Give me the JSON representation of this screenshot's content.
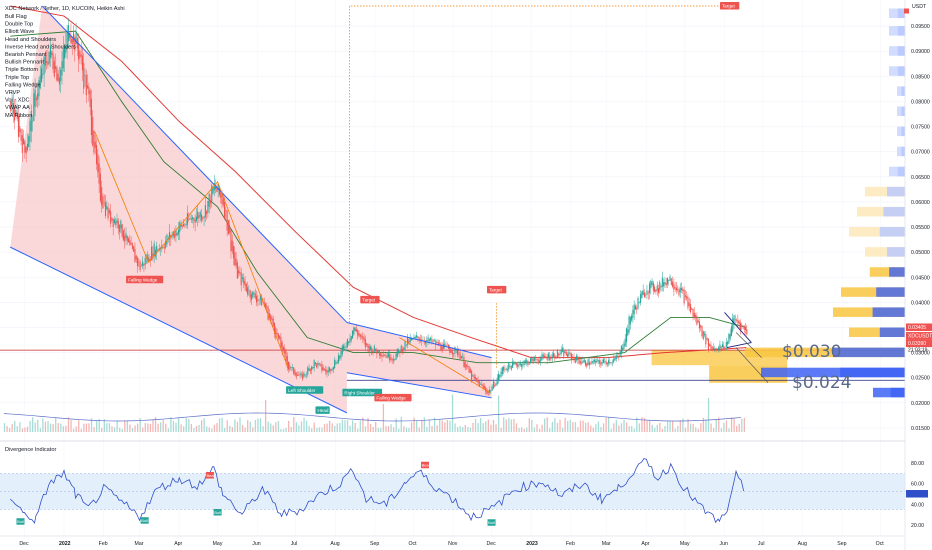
{
  "header": {
    "title": "XDC Network / Tether, 1D, KUCOIN, Heikin Ashi"
  },
  "indicators_legend": [
    "Bull Flag",
    "Double Top",
    "Elliott Wave",
    "Head and Shoulders",
    "Inverse Head and Shoulders",
    "Bearish Pennant",
    "Bullish Pennant",
    "Triple Bottom",
    "Triple Top",
    "Falling Wedge",
    "VRVP",
    "Vol · XDC",
    "VWAP AA",
    "MA Ribbon"
  ],
  "colors": {
    "bull": "#26a69a",
    "bear": "#ef5350",
    "wedge_fill": "#f8c9cb",
    "trend_line": "#2962ff",
    "ema_red": "#e53935",
    "ema_green": "#2e7d32",
    "vwap": "#5b6fc8",
    "zone_yellow": "#f9c640",
    "zone_blue": "#3d63f4",
    "osc_line": "#2f4fc9",
    "osc_band": "#dcecfb"
  },
  "price_axis": {
    "currency": "USDT",
    "ticks": [
      "0.09500",
      "0.09000",
      "0.08500",
      "0.08000",
      "0.07500",
      "0.07000",
      "0.06500",
      "0.06000",
      "0.05500",
      "0.05000",
      "0.04500",
      "0.04000",
      "0.03500",
      "0.03000",
      "0.02500",
      "0.02000",
      "0.01500"
    ],
    "badges": {
      "price": "0.03405",
      "symbol": "XDCUSDT",
      "price2": "0.03390",
      "timer": "21:02:19"
    }
  },
  "time_axis": [
    "Dec",
    "2022",
    "Feb",
    "Mar",
    "Apr",
    "May",
    "Jun",
    "Jul",
    "Aug",
    "Sep",
    "Oct",
    "Nov",
    "Dec",
    "2023",
    "Feb",
    "Mar",
    "Apr",
    "May",
    "Jun",
    "Jul",
    "Aug",
    "Sep",
    "Oct"
  ],
  "pattern_labels": {
    "falling_wedge_1": "Falling Wedge",
    "left_shoulder": "Left Shoulder",
    "head": "Head",
    "right_shoulder": "Right Shoulder",
    "falling_wedge_2": "Falling Wedge",
    "target_1": "Target",
    "target_2": "Target",
    "target_top": "Target"
  },
  "annotations": {
    "level_high": "$0.030",
    "level_low": "$0.024"
  },
  "oscillator": {
    "title": "Divergence Indicator",
    "ticks": [
      "80.00",
      "60.00",
      "40.00",
      "20.00"
    ],
    "signals": {
      "bull": "Bull",
      "bear": "Bear"
    }
  },
  "chart_data": {
    "type": "candlestick",
    "title": "XDC Network / Tether, 1D, KUCOIN, Heikin Ashi",
    "ylabel": "USDT",
    "ylim": [
      0.013,
      0.099
    ],
    "scale": "linear",
    "close_path": [
      [
        "2021-11-20",
        0.08
      ],
      [
        "2021-12-01",
        0.07
      ],
      [
        "2021-12-10",
        0.082
      ],
      [
        "2021-12-20",
        0.09
      ],
      [
        "2021-12-28",
        0.085
      ],
      [
        "2022-01-05",
        0.095
      ],
      [
        "2022-01-12",
        0.09
      ],
      [
        "2022-01-20",
        0.08
      ],
      [
        "2022-01-28",
        0.062
      ],
      [
        "2022-02-05",
        0.057
      ],
      [
        "2022-02-12",
        0.056
      ],
      [
        "2022-02-20",
        0.051
      ],
      [
        "2022-03-01",
        0.047
      ],
      [
        "2022-03-10",
        0.05
      ],
      [
        "2022-03-20",
        0.052
      ],
      [
        "2022-04-01",
        0.055
      ],
      [
        "2022-04-12",
        0.057
      ],
      [
        "2022-04-20",
        0.058
      ],
      [
        "2022-04-28",
        0.063
      ],
      [
        "2022-05-05",
        0.06
      ],
      [
        "2022-05-15",
        0.046
      ],
      [
        "2022-05-25",
        0.042
      ],
      [
        "2022-06-05",
        0.04
      ],
      [
        "2022-06-15",
        0.034
      ],
      [
        "2022-06-25",
        0.027
      ],
      [
        "2022-07-05",
        0.025
      ],
      [
        "2022-07-15",
        0.028
      ],
      [
        "2022-07-25",
        0.026
      ],
      [
        "2022-08-05",
        0.03
      ],
      [
        "2022-08-15",
        0.035
      ],
      [
        "2022-08-25",
        0.031
      ],
      [
        "2022-09-05",
        0.03
      ],
      [
        "2022-09-15",
        0.029
      ],
      [
        "2022-09-25",
        0.032
      ],
      [
        "2022-10-05",
        0.033
      ],
      [
        "2022-10-15",
        0.032
      ],
      [
        "2022-10-25",
        0.031
      ],
      [
        "2022-11-05",
        0.03
      ],
      [
        "2022-11-15",
        0.025
      ],
      [
        "2022-11-28",
        0.022
      ],
      [
        "2022-12-10",
        0.027
      ],
      [
        "2022-12-25",
        0.028
      ],
      [
        "2023-01-10",
        0.029
      ],
      [
        "2023-01-25",
        0.03
      ],
      [
        "2023-02-10",
        0.028
      ],
      [
        "2023-02-25",
        0.028
      ],
      [
        "2023-03-10",
        0.029
      ],
      [
        "2023-03-20",
        0.038
      ],
      [
        "2023-04-01",
        0.043
      ],
      [
        "2023-04-10",
        0.043
      ],
      [
        "2023-04-18",
        0.045
      ],
      [
        "2023-04-28",
        0.042
      ],
      [
        "2023-05-10",
        0.036
      ],
      [
        "2023-05-20",
        0.031
      ],
      [
        "2023-06-01",
        0.031
      ],
      [
        "2023-06-08",
        0.037
      ],
      [
        "2023-06-18",
        0.034
      ]
    ],
    "moving_average_red": [
      [
        "2021-11-20",
        0.099
      ],
      [
        "2022-01-01",
        0.097
      ],
      [
        "2022-02-15",
        0.088
      ],
      [
        "2022-04-01",
        0.076
      ],
      [
        "2022-05-15",
        0.066
      ],
      [
        "2022-07-01",
        0.054
      ],
      [
        "2022-08-15",
        0.043
      ],
      [
        "2022-10-01",
        0.037
      ],
      [
        "2022-11-15",
        0.033
      ],
      [
        "2023-01-01",
        0.029
      ],
      [
        "2023-03-01",
        0.029
      ],
      [
        "2023-04-15",
        0.03
      ],
      [
        "2023-06-18",
        0.031
      ]
    ],
    "moving_average_green": [
      [
        "2021-11-20",
        0.093
      ],
      [
        "2022-01-10",
        0.094
      ],
      [
        "2022-02-15",
        0.08
      ],
      [
        "2022-03-20",
        0.068
      ],
      [
        "2022-05-01",
        0.059
      ],
      [
        "2022-06-01",
        0.046
      ],
      [
        "2022-07-10",
        0.033
      ],
      [
        "2022-08-15",
        0.03
      ],
      [
        "2022-10-01",
        0.03
      ],
      [
        "2022-11-20",
        0.028
      ],
      [
        "2023-01-15",
        0.028
      ],
      [
        "2023-03-15",
        0.03
      ],
      [
        "2023-04-20",
        0.037
      ],
      [
        "2023-05-20",
        0.037
      ],
      [
        "2023-06-18",
        0.035
      ]
    ],
    "trend_lines": {
      "wedge_upper": [
        [
          "2021-12-15",
          0.099
        ],
        [
          "2022-08-10",
          0.036
        ]
      ],
      "wedge_lower": [
        [
          "2021-11-20",
          0.051
        ],
        [
          "2022-08-10",
          0.018
        ]
      ],
      "wedge2_upper": [
        [
          "2022-08-10",
          0.036
        ],
        [
          "2022-12-01",
          0.029
        ]
      ],
      "wedge2_lower": [
        [
          "2022-08-10",
          0.026
        ],
        [
          "2022-12-01",
          0.021
        ]
      ],
      "horizontal_support": 0.0245,
      "horizontal_red": 0.0305
    },
    "key_levels": {
      "upper": 0.03,
      "lower": 0.024
    },
    "targets": [
      0.04,
      0.042,
      0.099
    ],
    "volume_profile": [
      [
        0.0975,
        0.1
      ],
      [
        0.094,
        0.1
      ],
      [
        0.09,
        0.1
      ],
      [
        0.086,
        0.1
      ],
      [
        0.082,
        0.05
      ],
      [
        0.078,
        0.05
      ],
      [
        0.074,
        0.05
      ],
      [
        0.07,
        0.05
      ],
      [
        0.066,
        0.1
      ],
      [
        0.062,
        0.25
      ],
      [
        0.058,
        0.3
      ],
      [
        0.054,
        0.35
      ],
      [
        0.05,
        0.25
      ],
      [
        0.046,
        0.22
      ],
      [
        0.042,
        0.4
      ],
      [
        0.038,
        0.45
      ],
      [
        0.034,
        0.35
      ],
      [
        0.03,
        1.0
      ],
      [
        0.026,
        0.9
      ],
      [
        0.022,
        0.2
      ]
    ],
    "oscillator": {
      "ylim": [
        13,
        88
      ],
      "band": [
        35,
        70
      ],
      "values": [
        [
          "2021-11-20",
          48
        ],
        [
          "2021-12-01",
          30
        ],
        [
          "2021-12-10",
          25
        ],
        [
          "2021-12-20",
          60
        ],
        [
          "2022-01-01",
          70
        ],
        [
          "2022-01-10",
          50
        ],
        [
          "2022-01-20",
          35
        ],
        [
          "2022-02-01",
          55
        ],
        [
          "2022-02-15",
          42
        ],
        [
          "2022-03-01",
          28
        ],
        [
          "2022-03-15",
          55
        ],
        [
          "2022-04-01",
          65
        ],
        [
          "2022-04-15",
          58
        ],
        [
          "2022-04-28",
          75
        ],
        [
          "2022-05-05",
          50
        ],
        [
          "2022-05-20",
          30
        ],
        [
          "2022-06-05",
          55
        ],
        [
          "2022-06-20",
          30
        ],
        [
          "2022-07-05",
          35
        ],
        [
          "2022-07-20",
          50
        ],
        [
          "2022-08-05",
          60
        ],
        [
          "2022-08-15",
          75
        ],
        [
          "2022-08-25",
          45
        ],
        [
          "2022-09-10",
          40
        ],
        [
          "2022-09-25",
          62
        ],
        [
          "2022-10-05",
          72
        ],
        [
          "2022-10-15",
          60
        ],
        [
          "2022-11-01",
          45
        ],
        [
          "2022-11-15",
          28
        ],
        [
          "2022-12-01",
          35
        ],
        [
          "2022-12-20",
          55
        ],
        [
          "2023-01-10",
          62
        ],
        [
          "2023-01-25",
          48
        ],
        [
          "2023-02-10",
          60
        ],
        [
          "2023-02-25",
          45
        ],
        [
          "2023-03-10",
          55
        ],
        [
          "2023-03-20",
          70
        ],
        [
          "2023-04-01",
          82
        ],
        [
          "2023-04-10",
          65
        ],
        [
          "2023-04-20",
          78
        ],
        [
          "2023-05-01",
          55
        ],
        [
          "2023-05-15",
          35
        ],
        [
          "2023-05-28",
          22
        ],
        [
          "2023-06-05",
          40
        ],
        [
          "2023-06-10",
          68
        ],
        [
          "2023-06-18",
          50
        ]
      ]
    }
  }
}
